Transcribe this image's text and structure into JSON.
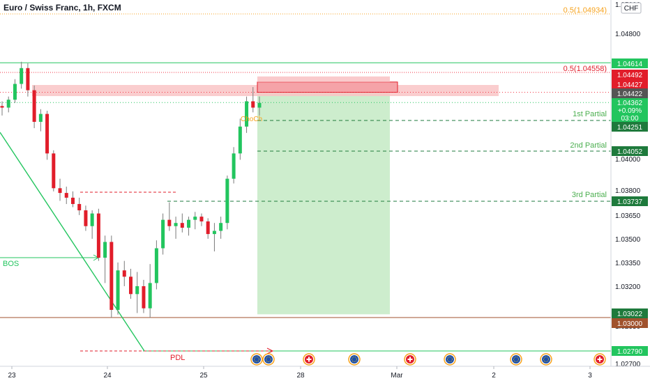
{
  "header": {
    "symbol_title": "Euro / Swiss Franc, 1h, FXCM",
    "currency_badge": "CHF"
  },
  "colors": {
    "up": "#22c55e",
    "down": "#e11d2a",
    "green_line": "#22c55e",
    "red_dotted": "#f23645",
    "orange_dotted": "#f7a21b",
    "brown_line": "#a0522d",
    "profit_zone": "#c8ebc8",
    "supply_zone": "#f9c4c6",
    "axis_text": "#131722",
    "partial_text": "#4caf50"
  },
  "chart_data": {
    "type": "candlestick",
    "symbol": "EURCHF",
    "timeframe": "1h",
    "y_axis_ticks": [
      "1.05000",
      "1.04800",
      "1.04000",
      "1.03800",
      "1.03650",
      "1.03500",
      "1.03350",
      "1.03200",
      "1.02950",
      "1.02700"
    ],
    "x_axis_ticks": [
      "23",
      "24",
      "25",
      "28",
      "Mar",
      "2",
      "3"
    ],
    "price_badges": [
      {
        "value": "1.04614",
        "color": "#22c55e",
        "price": 1.04614
      },
      {
        "value": "1.04492",
        "color": "#e11d2a",
        "price": 1.04492
      },
      {
        "value": "1.04427",
        "color": "#e11d2a",
        "price": 1.04427
      },
      {
        "value": "1.04422",
        "color": "#555555",
        "price": 1.04422
      },
      {
        "value": "1.04251",
        "color": "#1e7a3c",
        "price": 1.04251
      },
      {
        "value": "1.04052",
        "color": "#1e7a3c",
        "price": 1.04052
      },
      {
        "value": "1.03737",
        "color": "#1e7a3c",
        "price": 1.03737
      },
      {
        "value": "1.03022",
        "color": "#1e7a3c",
        "price": 1.03022
      },
      {
        "value": "1.03000",
        "color": "#a0522d",
        "price": 1.03
      },
      {
        "value": "1.02790",
        "color": "#22c55e",
        "price": 1.0279
      }
    ],
    "current_price": {
      "price": "1.04362",
      "change": "+0.09%",
      "countdown": "03:00",
      "value": 1.04362
    },
    "fib_labels": [
      {
        "text": "0.5(1.04934)",
        "price": 1.04934,
        "color": "#f7a21b"
      },
      {
        "text": "0.5(1.04558)",
        "price": 1.04558,
        "color": "#e11d2a"
      }
    ],
    "partials": [
      {
        "text": "1st Partial",
        "price": 1.04251
      },
      {
        "text": "2nd Partial",
        "price": 1.04052
      },
      {
        "text": "3rd Partial",
        "price": 1.03737
      }
    ],
    "annotations": {
      "bos": "BOS",
      "pdl": "PDL",
      "choch": "ChoCh"
    },
    "trade": {
      "entry": 1.04427,
      "stop": 1.04492,
      "target": 1.03022
    },
    "candles": [
      [
        1.0434,
        1.0437,
        1.0428,
        1.0433
      ],
      [
        1.0433,
        1.044,
        1.043,
        1.0438
      ],
      [
        1.0438,
        1.0451,
        1.0436,
        1.0448
      ],
      [
        1.0448,
        1.0462,
        1.0445,
        1.0458
      ],
      [
        1.0458,
        1.0461,
        1.044,
        1.0444
      ],
      [
        1.0444,
        1.0447,
        1.042,
        1.0424
      ],
      [
        1.0424,
        1.0432,
        1.0418,
        1.0429
      ],
      [
        1.0429,
        1.0431,
        1.04,
        1.0404
      ],
      [
        1.0404,
        1.0406,
        1.038,
        1.0382
      ],
      [
        1.0382,
        1.0388,
        1.0374,
        1.0379
      ],
      [
        1.0379,
        1.0383,
        1.0372,
        1.0376
      ],
      [
        1.0376,
        1.038,
        1.037,
        1.0372
      ],
      [
        1.0372,
        1.0376,
        1.0365,
        1.0368
      ],
      [
        1.0368,
        1.0371,
        1.0355,
        1.0358
      ],
      [
        1.0358,
        1.0368,
        1.035,
        1.0366
      ],
      [
        1.0366,
        1.0369,
        1.0336,
        1.0338
      ],
      [
        1.0338,
        1.0352,
        1.0322,
        1.0348
      ],
      [
        1.0348,
        1.0352,
        1.03,
        1.0305
      ],
      [
        1.0305,
        1.0335,
        1.0302,
        1.033
      ],
      [
        1.033,
        1.0336,
        1.032,
        1.0326
      ],
      [
        1.0326,
        1.0331,
        1.0312,
        1.0315
      ],
      [
        1.0315,
        1.0329,
        1.0303,
        1.032
      ],
      [
        1.032,
        1.0324,
        1.0303,
        1.0306
      ],
      [
        1.0306,
        1.0334,
        1.03,
        1.0322
      ],
      [
        1.0322,
        1.0349,
        1.0318,
        1.0344
      ],
      [
        1.0344,
        1.0366,
        1.034,
        1.0362
      ],
      [
        1.0362,
        1.0373,
        1.0355,
        1.0358
      ],
      [
        1.0358,
        1.0364,
        1.035,
        1.036
      ],
      [
        1.036,
        1.0366,
        1.0354,
        1.0357
      ],
      [
        1.0357,
        1.0364,
        1.0352,
        1.0362
      ],
      [
        1.0362,
        1.0367,
        1.0356,
        1.0364
      ],
      [
        1.0364,
        1.0366,
        1.0358,
        1.0361
      ],
      [
        1.0361,
        1.0363,
        1.035,
        1.0353
      ],
      [
        1.0353,
        1.036,
        1.0342,
        1.0355
      ],
      [
        1.0355,
        1.0364,
        1.035,
        1.036
      ],
      [
        1.036,
        1.039,
        1.0356,
        1.0388
      ],
      [
        1.0388,
        1.0408,
        1.0385,
        1.0404
      ],
      [
        1.0404,
        1.0426,
        1.04,
        1.0421
      ],
      [
        1.0421,
        1.044,
        1.0417,
        1.0437
      ],
      [
        1.0437,
        1.0446,
        1.043,
        1.0433
      ],
      [
        1.0433,
        1.044,
        1.0428,
        1.0436
      ]
    ]
  }
}
